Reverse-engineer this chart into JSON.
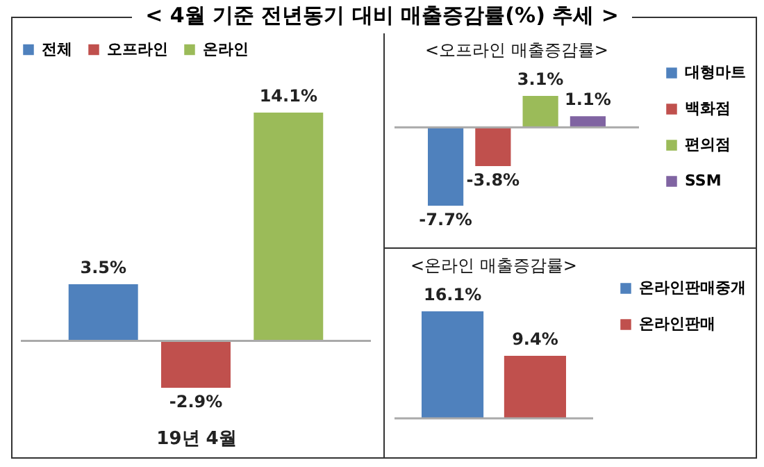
{
  "chart_data": [
    {
      "type": "bar",
      "title": "< 4월 기준 전년동기 대비 매출증감률(%) 추세 >",
      "xlabel": "19년 4월",
      "categories": [
        null
      ],
      "series": [
        {
          "name": "전체",
          "color": "#4f81bd",
          "values": [
            3.5
          ],
          "value_labels": [
            "3.5%"
          ]
        },
        {
          "name": "오프라인",
          "color": "#c0504d",
          "values": [
            -2.9
          ],
          "value_labels": [
            "-2.9%"
          ]
        },
        {
          "name": "온라인",
          "color": "#9bbb59",
          "values": [
            14.1
          ],
          "value_labels": [
            "14.1%"
          ]
        }
      ],
      "legend": "top",
      "tick_labels": false
    },
    {
      "type": "bar",
      "title": "<오프라인 매출증감률>",
      "categories": [
        null
      ],
      "series": [
        {
          "name": "대형마트",
          "color": "#4f81bd",
          "values": [
            -7.7
          ],
          "value_labels": [
            "-7.7%"
          ]
        },
        {
          "name": "백화점",
          "color": "#c0504d",
          "values": [
            -3.8
          ],
          "value_labels": [
            "-3.8%"
          ]
        },
        {
          "name": "편의점",
          "color": "#9bbb59",
          "values": [
            3.1
          ],
          "value_labels": [
            "3.1%"
          ]
        },
        {
          "name": "SSM",
          "color": "#8064a2",
          "values": [
            1.1
          ],
          "value_labels": [
            "1.1%"
          ]
        }
      ],
      "legend": "right",
      "tick_labels": false
    },
    {
      "type": "bar",
      "title": "<온라인 매출증감률>",
      "categories": [
        null
      ],
      "series": [
        {
          "name": "온라인판매중개",
          "color": "#4f81bd",
          "values": [
            16.1
          ],
          "value_labels": [
            "16.1%"
          ]
        },
        {
          "name": "온라인판매",
          "color": "#c0504d",
          "values": [
            9.4
          ],
          "value_labels": [
            "9.4%"
          ]
        }
      ],
      "legend": "right",
      "tick_labels": false
    }
  ]
}
